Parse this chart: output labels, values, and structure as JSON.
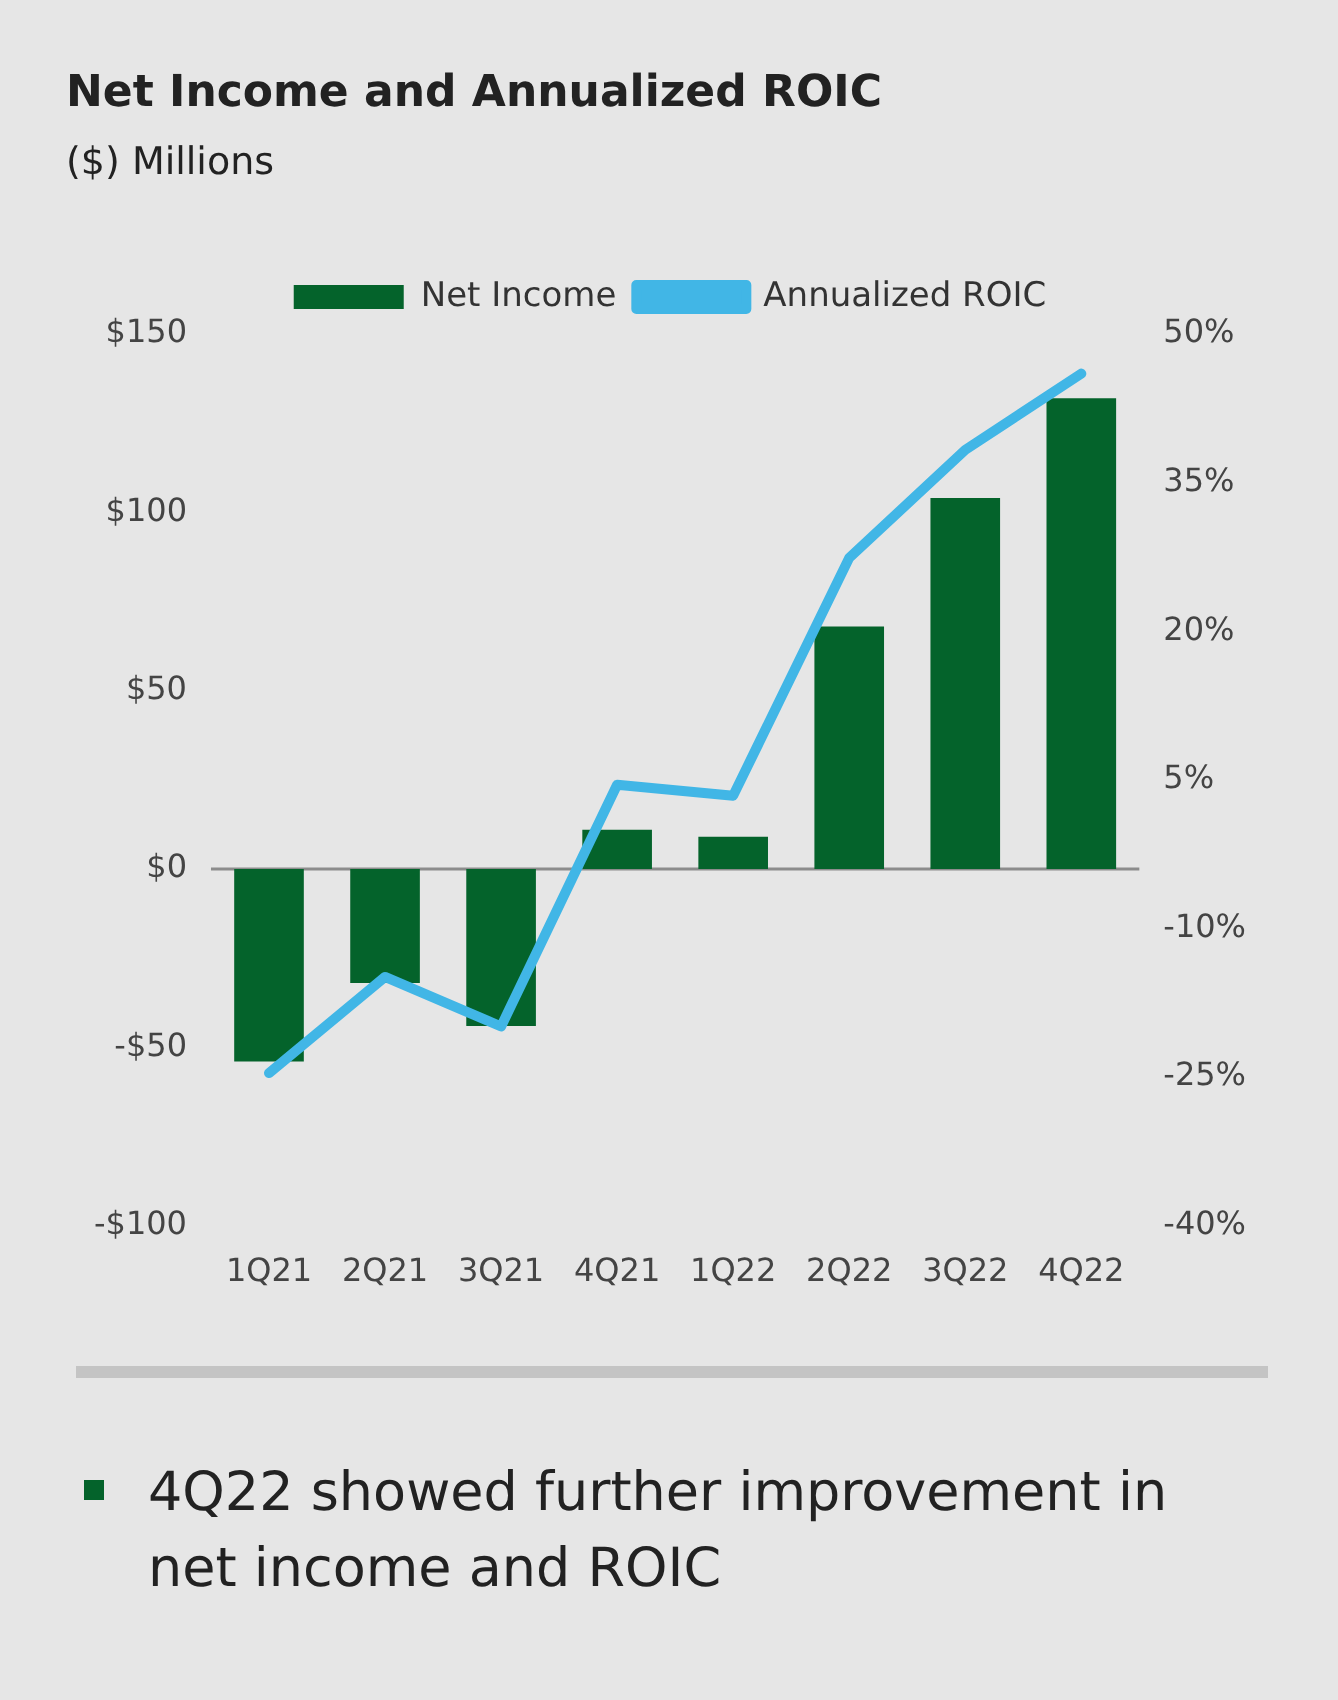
{
  "chart_data": {
    "type": "bar",
    "title": "Net Income and Annualized ROIC",
    "subtitle": "($) Millions",
    "categories": [
      "1Q21",
      "2Q21",
      "3Q21",
      "4Q21",
      "1Q22",
      "2Q22",
      "3Q22",
      "4Q22"
    ],
    "series": [
      {
        "name": "Net Income",
        "color": "#04632b",
        "values": [
          -54,
          -32,
          -44,
          11,
          9,
          68,
          104,
          132
        ]
      },
      {
        "name": "Annualized ROIC",
        "type": "line",
        "axis": "y2",
        "color": "#41b6e6",
        "values": [
          -24.6,
          -14.9,
          -19.9,
          4.5,
          3.4,
          27.4,
          38.3,
          46
        ]
      }
    ],
    "ylim": [
      -100,
      150
    ],
    "yticks": [
      {
        "value": -100,
        "label": "-$100"
      },
      {
        "value": -50,
        "label": "-$50"
      },
      {
        "value": 0,
        "label": "$0"
      },
      {
        "value": 50,
        "label": "$50"
      },
      {
        "value": 100,
        "label": "$100"
      },
      {
        "value": 150,
        "label": "$150"
      }
    ],
    "y2lim": [
      -40,
      50
    ],
    "y2ticks": [
      {
        "value": -40,
        "label": "-40%"
      },
      {
        "value": -25,
        "label": "-25%"
      },
      {
        "value": -10,
        "label": "-10%"
      },
      {
        "value": 5,
        "label": "5%"
      },
      {
        "value": 20,
        "label": "20%"
      },
      {
        "value": 35,
        "label": "35%"
      },
      {
        "value": 50,
        "label": "50%"
      }
    ],
    "ref_lines": [
      {
        "axis": "y",
        "value": 0,
        "color": "#8c8c8c"
      }
    ],
    "legend": "top",
    "grid": false,
    "marker": "none",
    "line_style": "solid",
    "annotations": [
      "4Q22 showed further improvement in net income and ROIC"
    ]
  }
}
